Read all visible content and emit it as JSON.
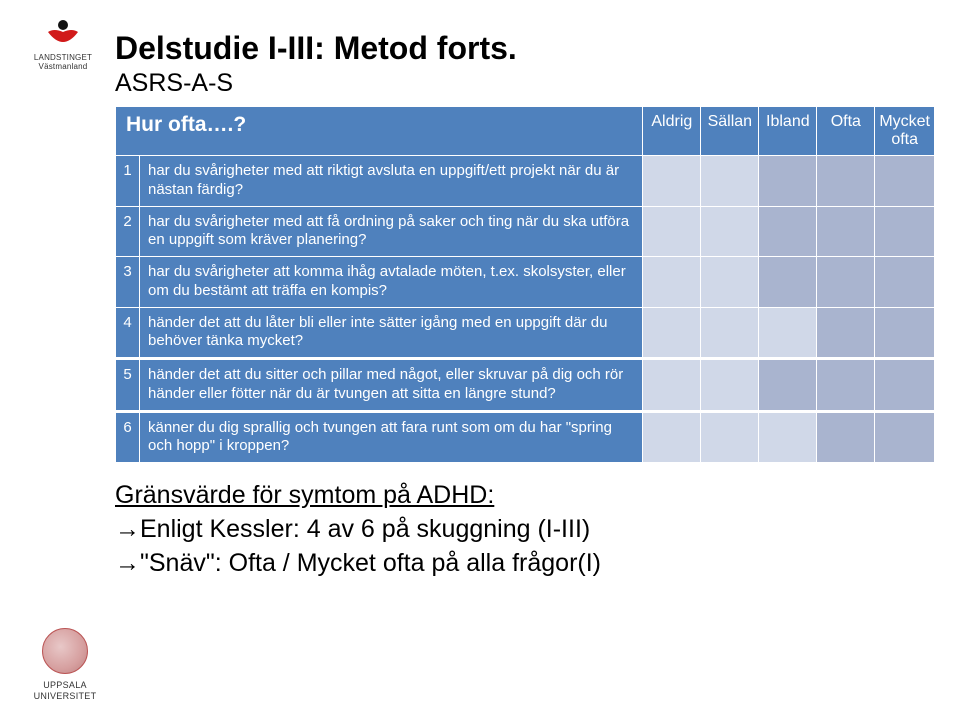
{
  "title": "Delstudie I-III: Metod forts.",
  "subtitle": "ASRS-A-S",
  "header": {
    "question": "Hur ofta….?",
    "cols": [
      "Aldrig",
      "Sällan",
      "Ibland",
      "Ofta",
      "Mycket ofta"
    ]
  },
  "rows": [
    {
      "n": "1",
      "text": "har du svårigheter med att riktigt avsluta en uppgift/ett projekt när du är nästan färdig?",
      "shade": [
        false,
        false,
        true,
        true,
        true
      ]
    },
    {
      "n": "2",
      "text": "har du svårigheter med att få ordning på saker och ting när du ska utföra en uppgift som kräver planering?",
      "shade": [
        false,
        false,
        true,
        true,
        true
      ]
    },
    {
      "n": "3",
      "text": "har du svårigheter att komma ihåg avtalade möten, t.ex. skolsyster, eller om du bestämt att träffa en kompis?",
      "shade": [
        false,
        false,
        true,
        true,
        true
      ]
    },
    {
      "n": "4",
      "text": "händer det att du låter bli eller inte sätter igång med en uppgift där du behöver tänka mycket?",
      "shade": [
        false,
        false,
        false,
        true,
        true
      ]
    }
  ],
  "rows2": [
    {
      "n": "5",
      "text": "händer det att du sitter och pillar med något, eller skruvar på dig och rör händer eller fötter när du är tvungen att sitta en längre stund?",
      "shade": [
        false,
        false,
        true,
        true,
        true
      ]
    },
    {
      "n": "6",
      "text": "känner du dig sprallig och tvungen att fara runt som om du har \"spring och hopp\" i kroppen?",
      "shade": [
        false,
        false,
        false,
        true,
        true
      ]
    }
  ],
  "notes": {
    "line1": "Gränsvärde för symtom på ADHD:",
    "line2": "Enligt Kessler: 4 av 6 på skuggning (I-III)",
    "line3": "\"Snäv\": Ofta / Mycket ofta på alla frågor(I)"
  },
  "logos": {
    "top_caption": "LANDSTINGET Västmanland",
    "bottom_caption": "UPPSALA UNIVERSITET"
  },
  "colors": {
    "table_blue": "#4f81bd",
    "cell_light": "#d0d8e8",
    "cell_shade": "#a9b4cf",
    "logo_red": "#d11a1a"
  }
}
